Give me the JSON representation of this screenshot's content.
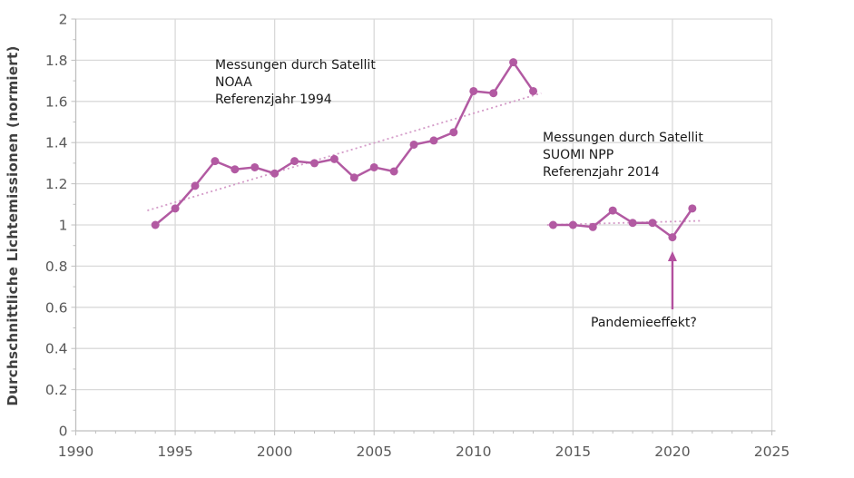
{
  "chart": {
    "y_axis_title": "Durchschnittliche Lichtemissionen (normiert)"
  },
  "chart_data": {
    "type": "line",
    "title": "",
    "xlabel": "",
    "ylabel": "Durchschnittliche Lichtemissionen (normiert)",
    "xlim": [
      1990,
      2025
    ],
    "ylim": [
      0,
      2
    ],
    "grid": true,
    "legend_position": "none",
    "x_major_ticks": [
      1990,
      1995,
      2000,
      2005,
      2010,
      2015,
      2020,
      2025
    ],
    "x_tick_labels": [
      "1990",
      "1995",
      "2000",
      "2005",
      "2010",
      "2015",
      "2020",
      "2025"
    ],
    "y_major_ticks": [
      0,
      0.2,
      0.4,
      0.6,
      0.8,
      1,
      1.2,
      1.4,
      1.6,
      1.8,
      2
    ],
    "y_tick_labels": [
      "0",
      "0.2",
      "0.4",
      "0.6",
      "0.8",
      "1",
      "1.2",
      "1.4",
      "1.6",
      "1.8",
      "2"
    ],
    "series": [
      {
        "name": "Messungen durch Satellit NOAA (Referenzjahr 1994)",
        "x": [
          1994,
          1995,
          1996,
          1997,
          1998,
          1999,
          2000,
          2001,
          2002,
          2003,
          2004,
          2005,
          2006,
          2007,
          2008,
          2009,
          2010,
          2011,
          2012,
          2013
        ],
        "y": [
          1.0,
          1.08,
          1.19,
          1.31,
          1.27,
          1.28,
          1.25,
          1.31,
          1.3,
          1.32,
          1.23,
          1.28,
          1.26,
          1.39,
          1.41,
          1.45,
          1.65,
          1.64,
          1.79,
          1.65
        ]
      },
      {
        "name": "Messungen durch Satellit SUOMI NPP (Referenzjahr 2014)",
        "x": [
          2014,
          2015,
          2016,
          2017,
          2018,
          2019,
          2020,
          2021
        ],
        "y": [
          1.0,
          1.0,
          0.99,
          1.07,
          1.01,
          1.01,
          0.94,
          1.08
        ]
      }
    ],
    "trendlines": [
      {
        "name": "noaa-trend",
        "x1": 1993.6,
        "y1": 1.07,
        "x2": 2013.4,
        "y2": 1.64
      },
      {
        "name": "suomi-trend",
        "x1": 2013.7,
        "y1": 1.0,
        "x2": 2021.4,
        "y2": 1.02
      }
    ],
    "annotations": {
      "noaa": {
        "lines": [
          "Messungen durch Satellit",
          "NOAA",
          "Referenzjahr 1994"
        ]
      },
      "suomi": {
        "lines": [
          "Messungen durch Satellit",
          "SUOMI NPP",
          "Referenzjahr 2014"
        ]
      },
      "pandemic": {
        "text": "Pandemieeffekt?",
        "arrow": {
          "x": 2020,
          "y_from": 0.59,
          "y_to": 0.872
        }
      }
    },
    "colors": {
      "series": "#b25aa2",
      "trend": "#d49bc8",
      "arrow": "#b3509f",
      "grid": "#d9d9d9",
      "axis": "#bfbfbf",
      "tick_label": "#595959",
      "annotation": "#1a1a1a",
      "background": "#ffffff"
    }
  }
}
